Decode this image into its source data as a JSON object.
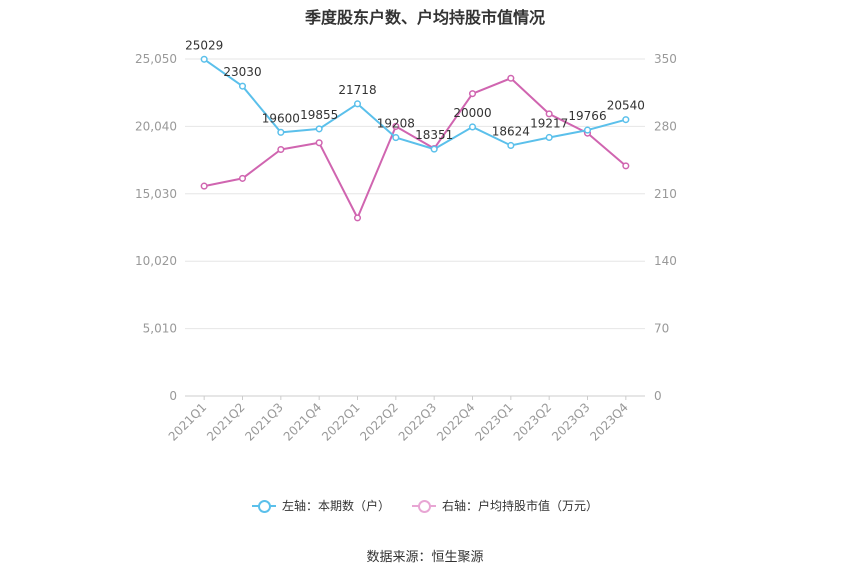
{
  "chart_data": {
    "type": "line",
    "title": "季度股东户数、户均持股市值情况",
    "categories": [
      "2021Q1",
      "2021Q2",
      "2021Q3",
      "2021Q4",
      "2022Q1",
      "2022Q2",
      "2022Q3",
      "2022Q4",
      "2023Q1",
      "2023Q2",
      "2023Q3",
      "2023Q4"
    ],
    "left_axis": {
      "ylim": [
        0,
        25050
      ],
      "ticks": [
        "0",
        "5,010",
        "10,020",
        "15,030",
        "20,040",
        "25,050"
      ]
    },
    "right_axis": {
      "ylim": [
        0,
        350
      ],
      "ticks": [
        "0",
        "70",
        "140",
        "210",
        "280",
        "350"
      ]
    },
    "series": [
      {
        "name": "左轴：本期数（户）",
        "axis": "left",
        "color": "#5bc0eb",
        "values": [
          25029,
          23030,
          19600,
          19855,
          21718,
          19208,
          18351,
          20000,
          18624,
          19217,
          19766,
          20540
        ],
        "labels": [
          "25029",
          "23030",
          "19600",
          "19855",
          "21718",
          "19208",
          "18351",
          "20000",
          "18624",
          "19217",
          "19766",
          "20540"
        ]
      },
      {
        "name": "右轴：户均持股市值（万元）",
        "axis": "right",
        "color": "#d065b0",
        "values": [
          218,
          226,
          256,
          263,
          185,
          280,
          257,
          314,
          330,
          293,
          273,
          239
        ]
      }
    ],
    "grid": true,
    "legend_position": "bottom"
  },
  "source": "数据来源：恒生聚源"
}
